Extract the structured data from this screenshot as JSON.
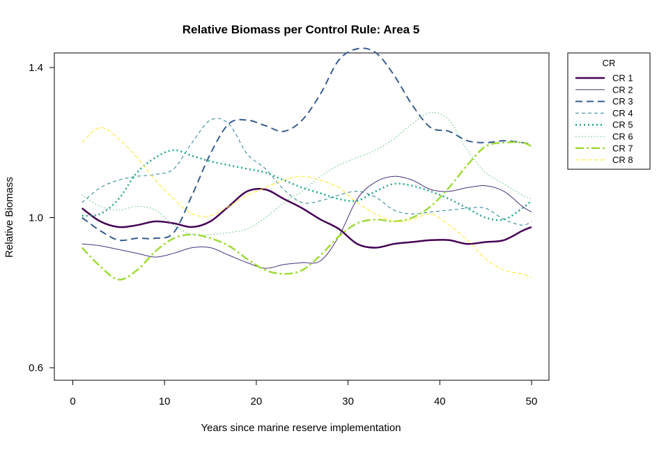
{
  "chart_data": {
    "type": "line",
    "title": "Relative Biomass per Control Rule: Area 5",
    "xlabel": "Years since marine reserve implementation",
    "ylabel": "Relative Biomass",
    "xlim": [
      1,
      50
    ],
    "ylim": [
      0.6,
      1.4
    ],
    "x_ticks": [
      0,
      10,
      20,
      30,
      40,
      50
    ],
    "y_ticks": [
      0.6,
      1.0,
      1.4
    ],
    "y_tick_labels": [
      "0.6",
      "1.0",
      "1.4"
    ],
    "grid": false,
    "legend": {
      "title": "CR",
      "placement": "right"
    },
    "x": [
      1,
      3,
      5,
      7,
      9,
      11,
      13,
      15,
      17,
      19,
      21,
      23,
      25,
      27,
      29,
      31,
      33,
      35,
      37,
      39,
      41,
      43,
      45,
      47,
      49,
      50
    ],
    "series": [
      {
        "name": "CR 1",
        "color": "#440154",
        "dash": "solid",
        "width": 2.5,
        "values": [
          1.025,
          0.99,
          0.975,
          0.98,
          0.99,
          0.985,
          0.975,
          0.99,
          1.03,
          1.07,
          1.075,
          1.05,
          1.025,
          0.995,
          0.97,
          0.93,
          0.92,
          0.93,
          0.935,
          0.94,
          0.94,
          0.93,
          0.935,
          0.94,
          0.965,
          0.975
        ]
      },
      {
        "name": "CR 2",
        "color": "#46327e",
        "dash": "solid",
        "width": 1,
        "values": [
          0.93,
          0.925,
          0.915,
          0.905,
          0.895,
          0.905,
          0.92,
          0.92,
          0.9,
          0.88,
          0.865,
          0.875,
          0.88,
          0.885,
          0.95,
          1.05,
          1.095,
          1.11,
          1.1,
          1.075,
          1.07,
          1.08,
          1.085,
          1.07,
          1.03,
          1.015
        ]
      },
      {
        "name": "CR 3",
        "color": "#365c8d",
        "dash": "10,6",
        "width": 2,
        "values": [
          1.0,
          0.965,
          0.94,
          0.945,
          0.945,
          0.96,
          1.06,
          1.17,
          1.25,
          1.26,
          1.245,
          1.23,
          1.26,
          1.33,
          1.42,
          1.45,
          1.44,
          1.38,
          1.3,
          1.24,
          1.23,
          1.205,
          1.2,
          1.205,
          1.2,
          1.195
        ]
      },
      {
        "name": "CR 4",
        "color": "#277f8e",
        "dash": "5,4",
        "width": 1,
        "values": [
          1.04,
          1.08,
          1.1,
          1.11,
          1.115,
          1.13,
          1.2,
          1.26,
          1.25,
          1.17,
          1.13,
          1.075,
          1.04,
          1.045,
          1.06,
          1.07,
          1.055,
          1.02,
          1.01,
          1.015,
          1.02,
          1.025,
          1.025,
          0.995,
          0.98,
          0.99
        ]
      },
      {
        "name": "CR 5",
        "color": "#1fa187",
        "dash": "2,4",
        "width": 2.5,
        "values": [
          1.005,
          1.01,
          1.05,
          1.12,
          1.16,
          1.18,
          1.165,
          1.15,
          1.14,
          1.13,
          1.12,
          1.1,
          1.08,
          1.065,
          1.05,
          1.045,
          1.07,
          1.09,
          1.085,
          1.07,
          1.05,
          1.025,
          1.0,
          0.995,
          1.025,
          1.045
        ]
      },
      {
        "name": "CR 6",
        "color": "#4ac16d",
        "dash": "1.5,3",
        "width": 1,
        "values": [
          1.06,
          1.03,
          1.02,
          1.03,
          1.02,
          0.98,
          0.955,
          0.955,
          0.96,
          0.97,
          1.0,
          1.04,
          1.07,
          1.11,
          1.14,
          1.16,
          1.18,
          1.21,
          1.25,
          1.28,
          1.26,
          1.18,
          1.12,
          1.09,
          1.06,
          1.05
        ]
      },
      {
        "name": "CR 7",
        "color": "#9fda3a",
        "dash": "12,4,3,4",
        "width": 2.5,
        "values": [
          0.92,
          0.87,
          0.835,
          0.86,
          0.91,
          0.945,
          0.955,
          0.945,
          0.925,
          0.89,
          0.86,
          0.85,
          0.86,
          0.9,
          0.95,
          0.985,
          0.995,
          0.99,
          1.0,
          1.03,
          1.08,
          1.14,
          1.19,
          1.2,
          1.2,
          1.19
        ]
      },
      {
        "name": "CR 8",
        "color": "#fde725",
        "dash": "6,3",
        "width": 1,
        "values": [
          1.2,
          1.24,
          1.21,
          1.16,
          1.1,
          1.05,
          1.01,
          1.005,
          1.03,
          1.06,
          1.08,
          1.1,
          1.11,
          1.1,
          1.08,
          1.04,
          1.01,
          0.99,
          0.995,
          1.01,
          0.98,
          0.94,
          0.89,
          0.86,
          0.85,
          0.84
        ]
      }
    ]
  }
}
